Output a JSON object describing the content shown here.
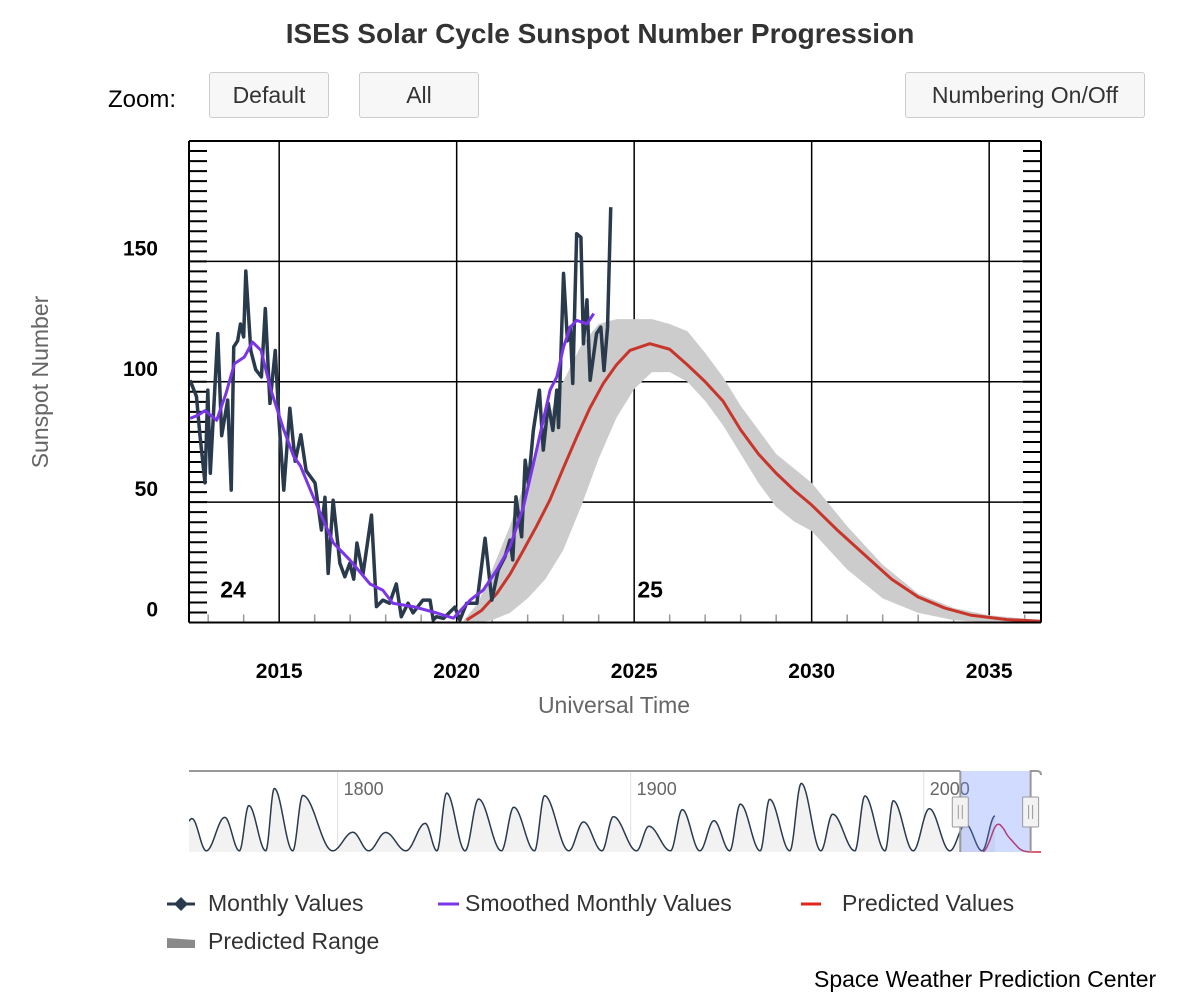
{
  "title": "ISES Solar Cycle Sunspot Number Progression",
  "zoom_label": "Zoom:",
  "buttons": {
    "default": "Default",
    "all": "All",
    "numbering": "Numbering On/Off"
  },
  "credits": "Space Weather Prediction Center",
  "legend": [
    {
      "label": "Monthly Values",
      "color": "#2a3a4d"
    },
    {
      "label": "Smoothed Monthly Values",
      "color": "#7b35e8"
    },
    {
      "label": "Predicted Values",
      "color": "#e0261b"
    },
    {
      "label": "Predicted Range",
      "color": "#8a8a8a"
    }
  ],
  "chart_data": {
    "type": "line",
    "title": "ISES Solar Cycle Sunspot Number Progression",
    "xlabel": "Universal Time",
    "ylabel": "Sunspot Number",
    "xlim": [
      2012.46,
      2036.46
    ],
    "ylim": [
      0,
      200
    ],
    "x_ticks": [
      "2015",
      "2020",
      "2025",
      "2030",
      "2035"
    ],
    "y_ticks": [
      "0",
      "50",
      "100",
      "150"
    ],
    "grid": true,
    "legend_position": "bottom",
    "cycle_labels": [
      {
        "label": "24",
        "x": 2013.7,
        "y": 12
      },
      {
        "label": "25",
        "x": 2025.45,
        "y": 12
      }
    ],
    "series": [
      {
        "name": "Monthly Values",
        "color": "#2a3a4d",
        "points": [
          [
            2012.49,
            100.6
          ],
          [
            2012.67,
            93.9
          ],
          [
            2012.77,
            77.6
          ],
          [
            2012.91,
            58
          ],
          [
            2012.99,
            96.5
          ],
          [
            2013.06,
            62
          ],
          [
            2013.27,
            120
          ],
          [
            2013.38,
            77.6
          ],
          [
            2013.55,
            92.4
          ],
          [
            2013.65,
            55
          ],
          [
            2013.72,
            114.5
          ],
          [
            2013.83,
            117
          ],
          [
            2013.91,
            124
          ],
          [
            2014.0,
            118.6
          ],
          [
            2014.06,
            146
          ],
          [
            2014.2,
            113
          ],
          [
            2014.34,
            105
          ],
          [
            2014.5,
            102
          ],
          [
            2014.61,
            130.4
          ],
          [
            2014.74,
            91
          ],
          [
            2014.89,
            113
          ],
          [
            2014.99,
            85
          ],
          [
            2015.13,
            55
          ],
          [
            2015.3,
            89
          ],
          [
            2015.45,
            67
          ],
          [
            2015.61,
            78
          ],
          [
            2015.76,
            63
          ],
          [
            2016.01,
            58
          ],
          [
            2016.19,
            38.4
          ],
          [
            2016.29,
            52
          ],
          [
            2016.38,
            20.4
          ],
          [
            2016.52,
            50.8
          ],
          [
            2016.71,
            24.6
          ],
          [
            2016.85,
            19
          ],
          [
            2016.99,
            24.6
          ],
          [
            2017.1,
            18
          ],
          [
            2017.19,
            33
          ],
          [
            2017.36,
            20
          ],
          [
            2017.6,
            44.6
          ],
          [
            2017.74,
            6.6
          ],
          [
            2017.92,
            9.3
          ],
          [
            2018.11,
            8
          ],
          [
            2018.3,
            16
          ],
          [
            2018.44,
            2.4
          ],
          [
            2018.63,
            8
          ],
          [
            2018.77,
            4
          ],
          [
            2019.05,
            9.3
          ],
          [
            2019.25,
            9.3
          ],
          [
            2019.34,
            1
          ],
          [
            2019.43,
            2.4
          ],
          [
            2019.63,
            1.7
          ],
          [
            2019.95,
            6.4
          ],
          [
            2020.09,
            1
          ],
          [
            2020.28,
            8
          ],
          [
            2020.57,
            8
          ],
          [
            2020.8,
            35
          ],
          [
            2020.99,
            9.3
          ],
          [
            2021.17,
            21.8
          ],
          [
            2021.36,
            27.3
          ],
          [
            2021.5,
            34.2
          ],
          [
            2021.58,
            26
          ],
          [
            2021.67,
            52.2
          ],
          [
            2021.83,
            35.6
          ],
          [
            2021.93,
            67.4
          ],
          [
            2022.02,
            57.7
          ],
          [
            2022.16,
            79.8
          ],
          [
            2022.33,
            96.5
          ],
          [
            2022.44,
            71.6
          ],
          [
            2022.58,
            91
          ],
          [
            2022.71,
            79.8
          ],
          [
            2022.82,
            96.5
          ],
          [
            2022.87,
            81
          ],
          [
            2023.01,
            145
          ],
          [
            2023.12,
            117
          ],
          [
            2023.2,
            122.7
          ],
          [
            2023.27,
            99.3
          ],
          [
            2023.38,
            161.5
          ],
          [
            2023.5,
            160
          ],
          [
            2023.57,
            115.8
          ],
          [
            2023.67,
            134
          ],
          [
            2023.76,
            100.6
          ],
          [
            2023.94,
            120
          ],
          [
            2024.06,
            122.7
          ],
          [
            2024.15,
            104.7
          ],
          [
            2024.25,
            122.7
          ],
          [
            2024.34,
            172.5
          ]
        ]
      },
      {
        "name": "Smoothed Monthly Values",
        "color": "#7b35e8",
        "points": [
          [
            2012.49,
            84.8
          ],
          [
            2012.7,
            86
          ],
          [
            2012.91,
            88
          ],
          [
            2013.24,
            84
          ],
          [
            2013.5,
            95
          ],
          [
            2013.74,
            107.5
          ],
          [
            2014.02,
            110.3
          ],
          [
            2014.25,
            116.5
          ],
          [
            2014.49,
            113
          ],
          [
            2014.77,
            96.5
          ],
          [
            2015.13,
            80
          ],
          [
            2015.41,
            69
          ],
          [
            2015.6,
            65
          ],
          [
            2015.88,
            55
          ],
          [
            2016.16,
            45.3
          ],
          [
            2016.53,
            33
          ],
          [
            2016.99,
            26
          ],
          [
            2017.56,
            16
          ],
          [
            2017.92,
            13.4
          ],
          [
            2018.2,
            8
          ],
          [
            2018.77,
            6.6
          ],
          [
            2019.43,
            4
          ],
          [
            2019.91,
            1.8
          ],
          [
            2020.38,
            9.3
          ],
          [
            2020.75,
            13.5
          ],
          [
            2021.13,
            21.8
          ],
          [
            2021.5,
            31.4
          ],
          [
            2021.88,
            48
          ],
          [
            2022.25,
            71.6
          ],
          [
            2022.63,
            96.5
          ],
          [
            2022.82,
            102
          ],
          [
            2023.01,
            114.4
          ],
          [
            2023.2,
            122.7
          ],
          [
            2023.38,
            125.5
          ],
          [
            2023.67,
            124
          ],
          [
            2023.86,
            128.3
          ]
        ]
      },
      {
        "name": "Predicted Values",
        "color": "#c8352b",
        "points": [
          [
            2020.28,
            1
          ],
          [
            2020.7,
            5
          ],
          [
            2021.13,
            12
          ],
          [
            2021.5,
            20
          ],
          [
            2021.88,
            30
          ],
          [
            2022.25,
            40
          ],
          [
            2022.63,
            51
          ],
          [
            2023.0,
            64
          ],
          [
            2023.38,
            77
          ],
          [
            2023.75,
            89
          ],
          [
            2024.13,
            99.3
          ],
          [
            2024.5,
            107
          ],
          [
            2024.88,
            113
          ],
          [
            2025.44,
            115.8
          ],
          [
            2026.0,
            113.5
          ],
          [
            2026.5,
            107
          ],
          [
            2027.0,
            100
          ],
          [
            2027.5,
            92
          ],
          [
            2028.0,
            80
          ],
          [
            2028.5,
            70
          ],
          [
            2029.0,
            62
          ],
          [
            2029.5,
            55
          ],
          [
            2030.0,
            48.8
          ],
          [
            2030.75,
            38
          ],
          [
            2031.5,
            28
          ],
          [
            2032.25,
            18
          ],
          [
            2033.0,
            10.6
          ],
          [
            2033.75,
            6
          ],
          [
            2034.5,
            3
          ],
          [
            2035.5,
            1.2
          ],
          [
            2036.46,
            0.5
          ]
        ]
      }
    ],
    "predicted_range": {
      "name": "Predicted Range",
      "color": "#cccccc",
      "points": [
        [
          2020.2,
          0,
          1
        ],
        [
          2020.6,
          0,
          8
        ],
        [
          2021.0,
          1,
          22
        ],
        [
          2021.5,
          4,
          40
        ],
        [
          2022.0,
          10,
          62
        ],
        [
          2022.5,
          18,
          82
        ],
        [
          2023.0,
          30,
          100
        ],
        [
          2023.5,
          48,
          115
        ],
        [
          2024.0,
          68,
          124
        ],
        [
          2024.5,
          85,
          126
        ],
        [
          2025.0,
          97,
          126
        ],
        [
          2025.5,
          104,
          126
        ],
        [
          2026.0,
          104,
          124
        ],
        [
          2026.5,
          100,
          121
        ],
        [
          2027.0,
          92,
          112
        ],
        [
          2027.5,
          82,
          102
        ],
        [
          2028.0,
          70,
          90
        ],
        [
          2028.5,
          58,
          80
        ],
        [
          2029.0,
          48,
          70
        ],
        [
          2029.5,
          42,
          64
        ],
        [
          2030.0,
          38,
          58
        ],
        [
          2031.0,
          22,
          40
        ],
        [
          2032.0,
          10,
          24
        ],
        [
          2033.0,
          4,
          12
        ],
        [
          2034.0,
          1,
          6
        ],
        [
          2035.0,
          0,
          3
        ],
        [
          2036.46,
          0,
          1
        ]
      ]
    }
  },
  "navigator": {
    "x_labels": [
      "1800",
      "1900",
      "2000"
    ],
    "xlim": [
      1749.3,
      2040.0
    ],
    "selected_range": [
      2012.46,
      2036.46
    ],
    "cycles": [
      {
        "min": 1745.0,
        "max": 1750.3,
        "peak": 139
      },
      {
        "min": 1755.2,
        "max": 1761.5,
        "peak": 144
      },
      {
        "min": 1766.5,
        "max": 1769.7,
        "peak": 193
      },
      {
        "min": 1775.5,
        "max": 1778.4,
        "peak": 264
      },
      {
        "min": 1784.7,
        "max": 1788.1,
        "peak": 235
      },
      {
        "min": 1798.3,
        "max": 1805.2,
        "peak": 82
      },
      {
        "min": 1810.6,
        "max": 1816.4,
        "peak": 81
      },
      {
        "min": 1823.3,
        "max": 1829.9,
        "peak": 119
      },
      {
        "min": 1833.9,
        "max": 1837.2,
        "peak": 245
      },
      {
        "min": 1843.5,
        "max": 1848.1,
        "peak": 220
      },
      {
        "min": 1855.9,
        "max": 1860.1,
        "peak": 186
      },
      {
        "min": 1867.2,
        "max": 1870.6,
        "peak": 234
      },
      {
        "min": 1878.9,
        "max": 1883.9,
        "peak": 125
      },
      {
        "min": 1890.2,
        "max": 1894.1,
        "peak": 147
      },
      {
        "min": 1902.0,
        "max": 1906.2,
        "peak": 107
      },
      {
        "min": 1913.6,
        "max": 1917.6,
        "peak": 176
      },
      {
        "min": 1923.6,
        "max": 1928.4,
        "peak": 130
      },
      {
        "min": 1933.8,
        "max": 1937.4,
        "peak": 199
      },
      {
        "min": 1944.2,
        "max": 1947.4,
        "peak": 219
      },
      {
        "min": 1954.3,
        "max": 1958.2,
        "peak": 285
      },
      {
        "min": 1964.9,
        "max": 1968.9,
        "peak": 157
      },
      {
        "min": 1976.5,
        "max": 1979.9,
        "peak": 233
      },
      {
        "min": 1986.8,
        "max": 1989.6,
        "peak": 213
      },
      {
        "min": 1996.4,
        "max": 2001.9,
        "peak": 180
      },
      {
        "min": 2008.9,
        "max": 2014.3,
        "peak": 116
      },
      {
        "min": 2019.9,
        "max": 2024.3,
        "peak": 150
      }
    ]
  }
}
